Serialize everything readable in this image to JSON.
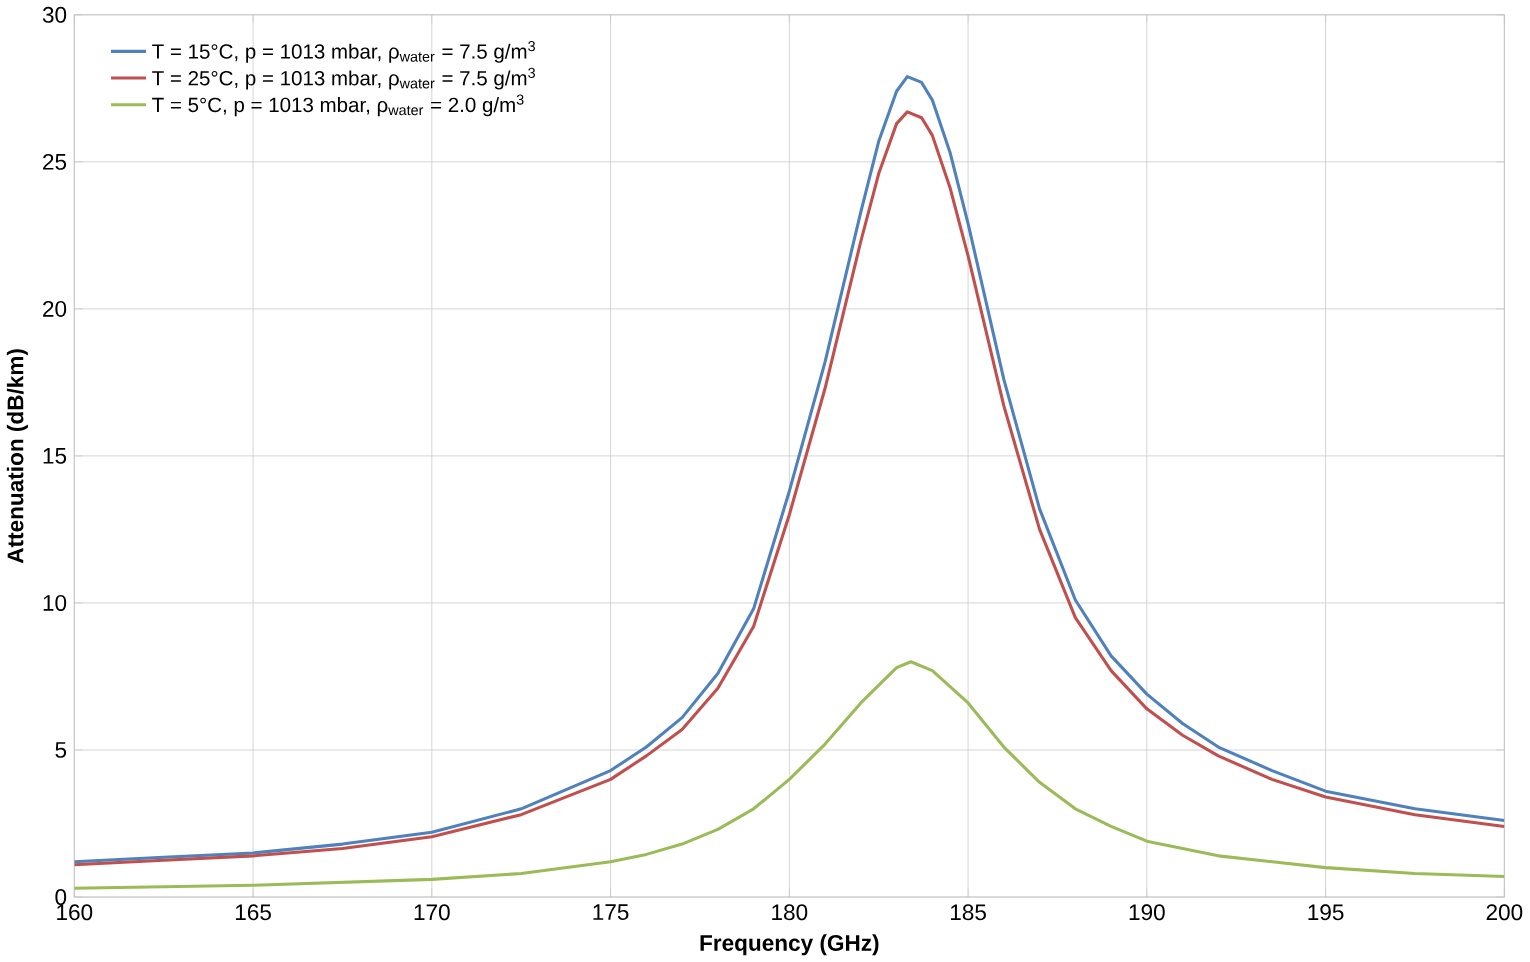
{
  "chart_data": {
    "type": "line",
    "xlabel": "Frequency (GHz)",
    "ylabel": "Attenuation (dB/km)",
    "xlim": [
      160,
      200
    ],
    "ylim": [
      0,
      30
    ],
    "xticks": [
      160,
      165,
      170,
      175,
      180,
      185,
      190,
      195,
      200
    ],
    "yticks": [
      0,
      5,
      10,
      15,
      20,
      25,
      30
    ],
    "grid": true,
    "legend": "top left",
    "series": [
      {
        "name": "T = 15°C, p = 1013 mbar, ρ$_{water}$ = 7.5 g/m$^{3}$",
        "color": "#4f81bd",
        "x": [
          160,
          162.5,
          165,
          167.5,
          170,
          172.5,
          175,
          176,
          177,
          178,
          179,
          180,
          181,
          182,
          182.5,
          183,
          183.3,
          183.7,
          184,
          184.5,
          185,
          186,
          187,
          188,
          189,
          190,
          191,
          192,
          193.5,
          195,
          197.5,
          200
        ],
        "values": [
          1.2,
          1.35,
          1.5,
          1.8,
          2.2,
          3.0,
          4.3,
          5.1,
          6.1,
          7.6,
          9.8,
          13.8,
          18.2,
          23.3,
          25.7,
          27.4,
          27.9,
          27.7,
          27.1,
          25.3,
          22.9,
          17.6,
          13.2,
          10.1,
          8.2,
          6.9,
          5.9,
          5.1,
          4.3,
          3.6,
          3.0,
          2.6
        ]
      },
      {
        "name": "T = 25°C, p = 1013 mbar, ρ$_{water}$ = 7.5 g/m$^{3}$",
        "color": "#c0504d",
        "x": [
          160,
          162.5,
          165,
          167.5,
          170,
          172.5,
          175,
          176,
          177,
          178,
          179,
          180,
          181,
          182,
          182.5,
          183,
          183.3,
          183.7,
          184,
          184.5,
          185,
          186,
          187,
          188,
          189,
          190,
          191,
          192,
          193.5,
          195,
          197.5,
          200
        ],
        "values": [
          1.1,
          1.25,
          1.4,
          1.65,
          2.05,
          2.8,
          4.0,
          4.8,
          5.7,
          7.1,
          9.2,
          13.0,
          17.3,
          22.3,
          24.6,
          26.3,
          26.7,
          26.5,
          25.9,
          24.1,
          21.8,
          16.7,
          12.5,
          9.5,
          7.7,
          6.4,
          5.5,
          4.8,
          4.0,
          3.4,
          2.8,
          2.4
        ]
      },
      {
        "name": "T = 5°C, p = 1013 mbar, ρ$_{water}$ = 2.0 g/m$^{3}$",
        "color": "#9bbb59",
        "x": [
          160,
          165,
          170,
          172.5,
          175,
          176,
          177,
          178,
          179,
          180,
          181,
          182,
          183,
          183.4,
          184,
          185,
          186,
          187,
          188,
          189,
          190,
          192,
          195,
          197.5,
          200
        ],
        "values": [
          0.3,
          0.4,
          0.6,
          0.8,
          1.2,
          1.45,
          1.8,
          2.3,
          3.0,
          4.0,
          5.2,
          6.6,
          7.8,
          8.0,
          7.7,
          6.6,
          5.1,
          3.9,
          3.0,
          2.4,
          1.9,
          1.4,
          1.0,
          0.8,
          0.7
        ]
      }
    ]
  }
}
